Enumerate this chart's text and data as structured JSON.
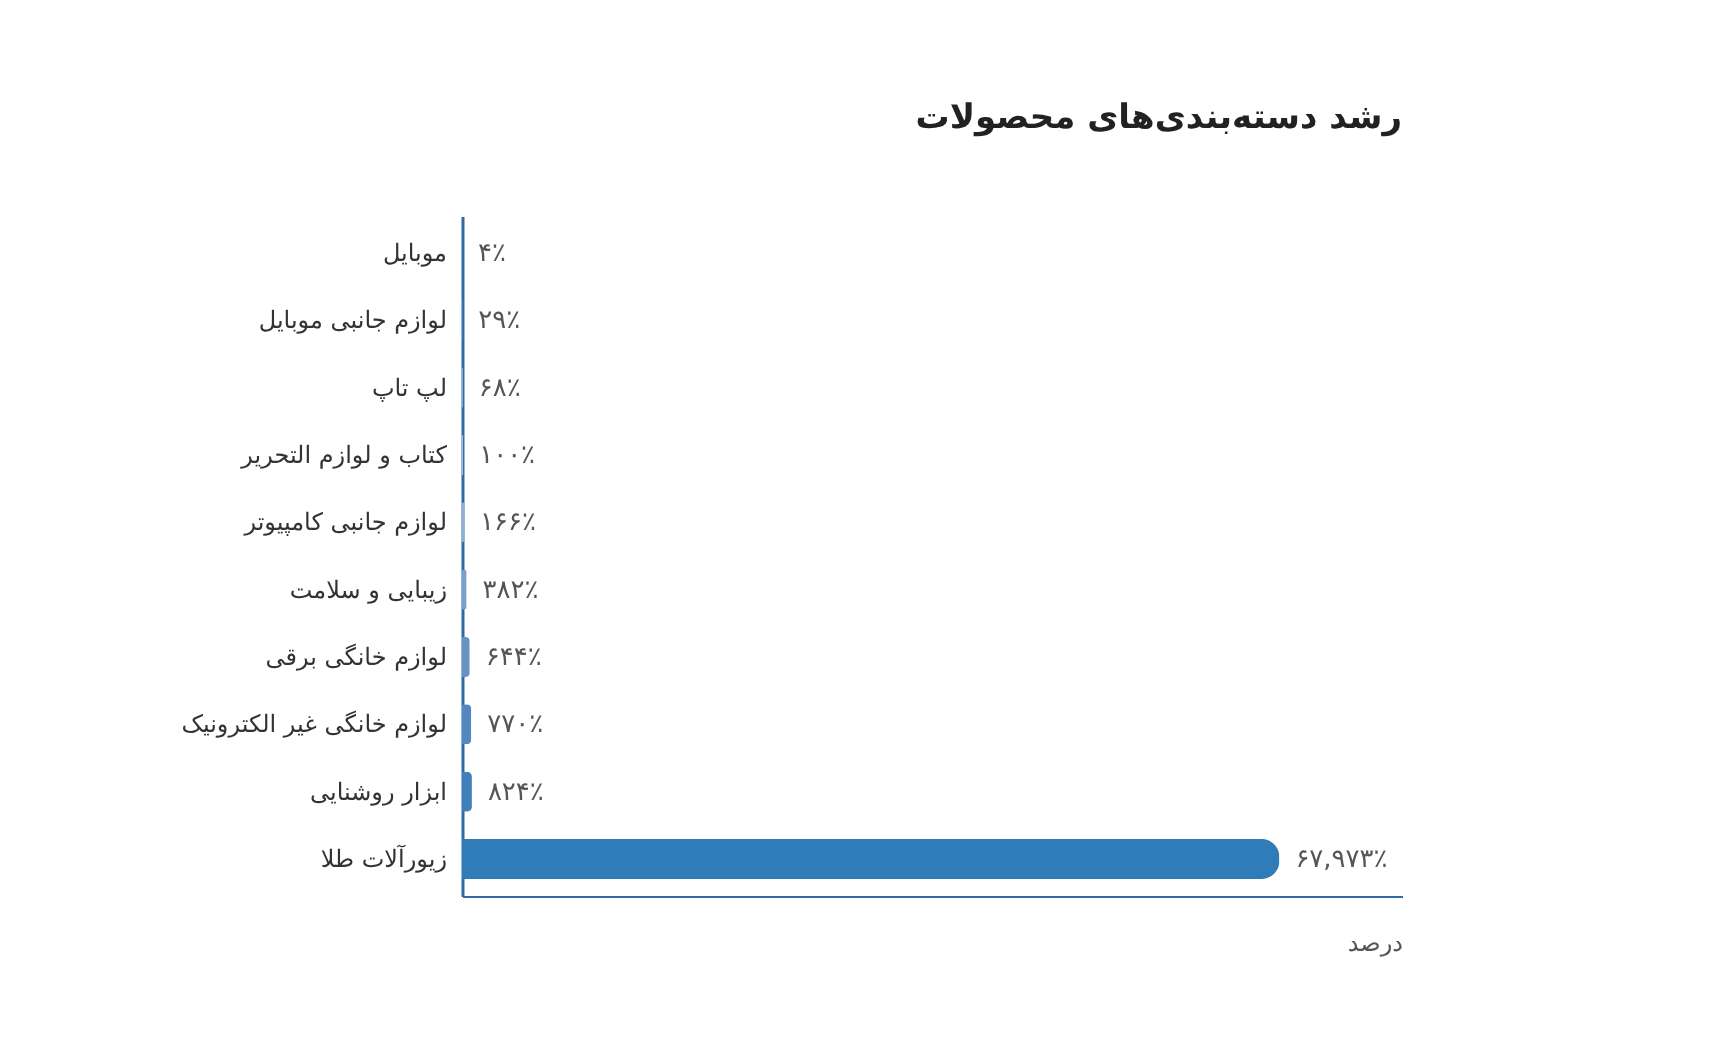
{
  "chart_data": {
    "type": "bar",
    "orientation": "horizontal",
    "title": "رشد دسته‌بندی‌های محصولات",
    "xlabel": "درصد",
    "categories": [
      "موبایل",
      "لوازم جانبی موبایل",
      "لپ تاپ",
      "کتاب و لوازم التحریر",
      "لوازم جانبی کامپیوتر",
      "زیبایی و سلامت",
      "لوازم خانگی برقی",
      "لوازم خانگی غیر الکترونیک",
      "ابزار روشنایی",
      "زیورآلات طلا"
    ],
    "values": [
      4,
      29,
      68,
      100,
      166,
      382,
      644,
      770,
      824,
      67973
    ],
    "value_labels": [
      "۴٪",
      "۲۹٪",
      "۶۸٪",
      "۱۰۰٪",
      "۱۶۶٪",
      "۳۸۲٪",
      "۶۴۴٪",
      "۷۷۰٪",
      "۸۲۴٪",
      "۶۷,۹۷۳٪"
    ],
    "colors": [
      "#e6eaf2",
      "#d3ddec",
      "#bccbe2",
      "#a8bcda",
      "#93afd2",
      "#7b9ec8",
      "#6892c2",
      "#5287bf",
      "#3f80bb",
      "#2f7cb8"
    ],
    "grid": false
  }
}
